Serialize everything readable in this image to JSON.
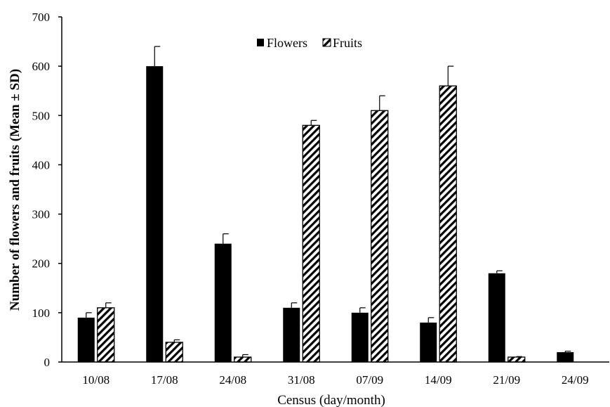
{
  "chart_data": {
    "type": "bar",
    "categories": [
      "10/08",
      "17/08",
      "24/08",
      "31/08",
      "07/09",
      "14/09",
      "21/09",
      "24/09"
    ],
    "series": [
      {
        "name": "Flowers",
        "values": [
          90,
          600,
          240,
          110,
          100,
          80,
          180,
          20
        ],
        "error": [
          10,
          40,
          20,
          10,
          10,
          10,
          5,
          2
        ],
        "color": "#000000",
        "pattern": "solid"
      },
      {
        "name": "Fruits",
        "values": [
          110,
          40,
          10,
          480,
          510,
          560,
          10,
          0
        ],
        "error": [
          10,
          5,
          5,
          10,
          30,
          40,
          1,
          0
        ],
        "color": "#000000",
        "pattern": "diagonal-hatch"
      }
    ],
    "title": "",
    "xlabel": "Census (day/month)",
    "ylabel": "Number of flowers and fruits (Mean ± SD)",
    "ylim": [
      0,
      700
    ],
    "yticks": [
      "0",
      "100",
      "200",
      "300",
      "400",
      "500",
      "600",
      "700"
    ],
    "grid": false,
    "legend": "top-center"
  }
}
